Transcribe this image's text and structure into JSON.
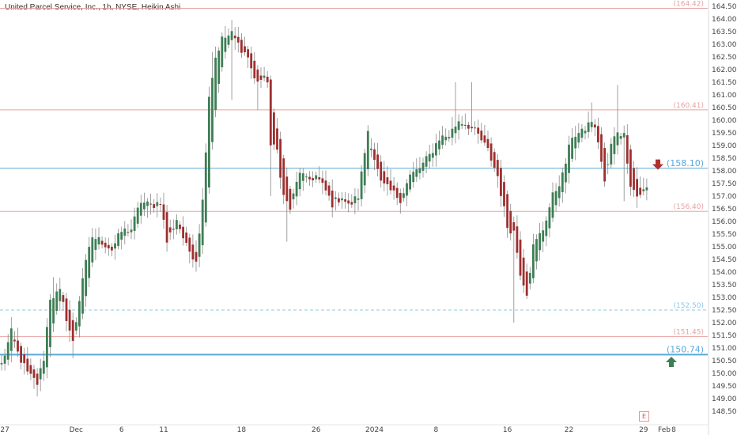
{
  "header": {
    "title": "United Parcel Service, Inc., 1h, NYSE, Heikin Ashi"
  },
  "chart_data": {
    "type": "candlestick",
    "ylim": [
      148.0,
      164.75
    ],
    "y_ticks": [
      "148.50",
      "149.00",
      "149.50",
      "150.00",
      "150.50",
      "151.00",
      "151.50",
      "152.00",
      "152.50",
      "153.00",
      "153.50",
      "154.00",
      "154.50",
      "155.00",
      "155.50",
      "156.00",
      "156.50",
      "157.00",
      "157.50",
      "158.00",
      "158.50",
      "159.00",
      "159.50",
      "160.00",
      "160.50",
      "161.00",
      "161.50",
      "162.00",
      "162.50",
      "163.00",
      "163.50",
      "164.00",
      "164.50"
    ],
    "x_ticks": [
      {
        "label": "27",
        "bar": 1
      },
      {
        "label": "Dec",
        "bar": 23
      },
      {
        "label": "6",
        "bar": 37
      },
      {
        "label": "11",
        "bar": 50
      },
      {
        "label": "18",
        "bar": 74
      },
      {
        "label": "26",
        "bar": 97
      },
      {
        "label": "2024",
        "bar": 115
      },
      {
        "label": "8",
        "bar": 134
      },
      {
        "label": "16",
        "bar": 156
      },
      {
        "label": "22",
        "bar": 175
      },
      {
        "label": "29",
        "bar": 198
      },
      {
        "label": "Feb",
        "bar": 210
      },
      {
        "label": "8",
        "bar": 213
      }
    ],
    "levels": [
      {
        "value": 164.42,
        "label": "(164.42)",
        "color": "#e8a3a3",
        "style": "solid",
        "width": 1,
        "label_size": 9
      },
      {
        "value": 160.41,
        "label": "(160.41)",
        "color": "#e8a3a3",
        "style": "solid",
        "width": 1,
        "label_size": 9
      },
      {
        "value": 158.1,
        "label": "(158.10)",
        "color": "#5aa8d8",
        "style": "solid",
        "width": 1,
        "label_size": 11
      },
      {
        "value": 156.4,
        "label": "(156.40)",
        "color": "#e8a3a3",
        "style": "solid",
        "width": 1,
        "label_size": 9
      },
      {
        "value": 152.5,
        "label": "(152.50)",
        "color": "#8ec8ea",
        "style": "dashed",
        "width": 1,
        "label_size": 9
      },
      {
        "value": 151.45,
        "label": "(151.45)",
        "color": "#e8a3a3",
        "style": "solid",
        "width": 1,
        "label_size": 9
      },
      {
        "value": 150.74,
        "label": "(150.74)",
        "color": "#5aa8d8",
        "style": "solid",
        "width": 2,
        "label_size": 11
      }
    ],
    "arrows": [
      {
        "direction": "down",
        "value": 158.2,
        "color": "#b22f2f"
      },
      {
        "direction": "up",
        "value": 150.5,
        "color": "#3e7e55"
      }
    ],
    "colors": {
      "up": "#3e7e55",
      "down": "#9e2f2f",
      "wick": "#888888"
    },
    "anchors": [
      [
        0,
        150.35
      ],
      [
        3,
        151.6
      ],
      [
        5,
        150.8
      ],
      [
        8,
        150.0
      ],
      [
        11,
        149.6
      ],
      [
        13,
        150.6
      ],
      [
        15,
        153.0
      ],
      [
        18,
        153.2
      ],
      [
        22,
        151.2
      ],
      [
        25,
        153.8
      ],
      [
        28,
        155.4
      ],
      [
        31,
        155.2
      ],
      [
        34,
        154.9
      ],
      [
        37,
        155.6
      ],
      [
        40,
        155.7
      ],
      [
        43,
        156.8
      ],
      [
        46,
        156.6
      ],
      [
        49,
        156.8
      ],
      [
        51,
        155.2
      ],
      [
        54,
        156.1
      ],
      [
        57,
        155.0
      ],
      [
        60,
        154.5
      ],
      [
        62,
        156.8
      ],
      [
        64,
        161.0
      ],
      [
        66,
        162.5
      ],
      [
        68,
        163.2
      ],
      [
        71,
        163.4
      ],
      [
        73,
        163.0
      ],
      [
        76,
        162.5
      ],
      [
        78,
        161.6
      ],
      [
        82,
        161.6
      ],
      [
        83,
        159.0
      ],
      [
        85,
        158.8
      ],
      [
        87,
        157.0
      ],
      [
        89,
        156.5
      ],
      [
        92,
        158.0
      ],
      [
        94,
        157.6
      ],
      [
        97,
        157.8
      ],
      [
        100,
        157.2
      ],
      [
        102,
        156.7
      ],
      [
        105,
        157.0
      ],
      [
        107,
        156.6
      ],
      [
        110,
        157.0
      ],
      [
        113,
        159.6
      ],
      [
        115,
        158.5
      ],
      [
        117,
        157.5
      ],
      [
        120,
        157.2
      ],
      [
        123,
        156.9
      ],
      [
        126,
        157.8
      ],
      [
        129,
        158.1
      ],
      [
        132,
        158.6
      ],
      [
        135,
        159.3
      ],
      [
        138,
        159.4
      ],
      [
        141,
        160.0
      ],
      [
        144,
        159.8
      ],
      [
        147,
        159.4
      ],
      [
        150,
        158.8
      ],
      [
        153,
        157.8
      ],
      [
        156,
        155.8
      ],
      [
        158,
        155.6
      ],
      [
        160,
        154.0
      ],
      [
        162,
        153.2
      ],
      [
        164,
        155.0
      ],
      [
        167,
        155.7
      ],
      [
        170,
        157.0
      ],
      [
        173,
        157.8
      ],
      [
        176,
        159.4
      ],
      [
        179,
        159.5
      ],
      [
        182,
        160.0
      ],
      [
        184,
        159.2
      ],
      [
        186,
        157.5
      ],
      [
        188,
        159.0
      ],
      [
        190,
        159.6
      ],
      [
        192,
        159.4
      ],
      [
        194,
        157.5
      ],
      [
        196,
        157.0
      ],
      [
        199,
        157.3
      ]
    ],
    "spikes": [
      {
        "bar": 5,
        "high": 151.8
      },
      {
        "bar": 16,
        "high": 153.8
      },
      {
        "bar": 22,
        "low": 150.6
      },
      {
        "bar": 65,
        "high": 162.7
      },
      {
        "bar": 71,
        "low": 160.8
      },
      {
        "bar": 79,
        "low": 160.4
      },
      {
        "bar": 83,
        "low": 157.0
      },
      {
        "bar": 88,
        "low": 155.2
      },
      {
        "bar": 140,
        "high": 161.5
      },
      {
        "bar": 145,
        "high": 161.5
      },
      {
        "bar": 158,
        "low": 152.0
      },
      {
        "bar": 182,
        "high": 160.7
      },
      {
        "bar": 190,
        "high": 161.4
      },
      {
        "bar": 192,
        "low": 156.8
      }
    ]
  }
}
